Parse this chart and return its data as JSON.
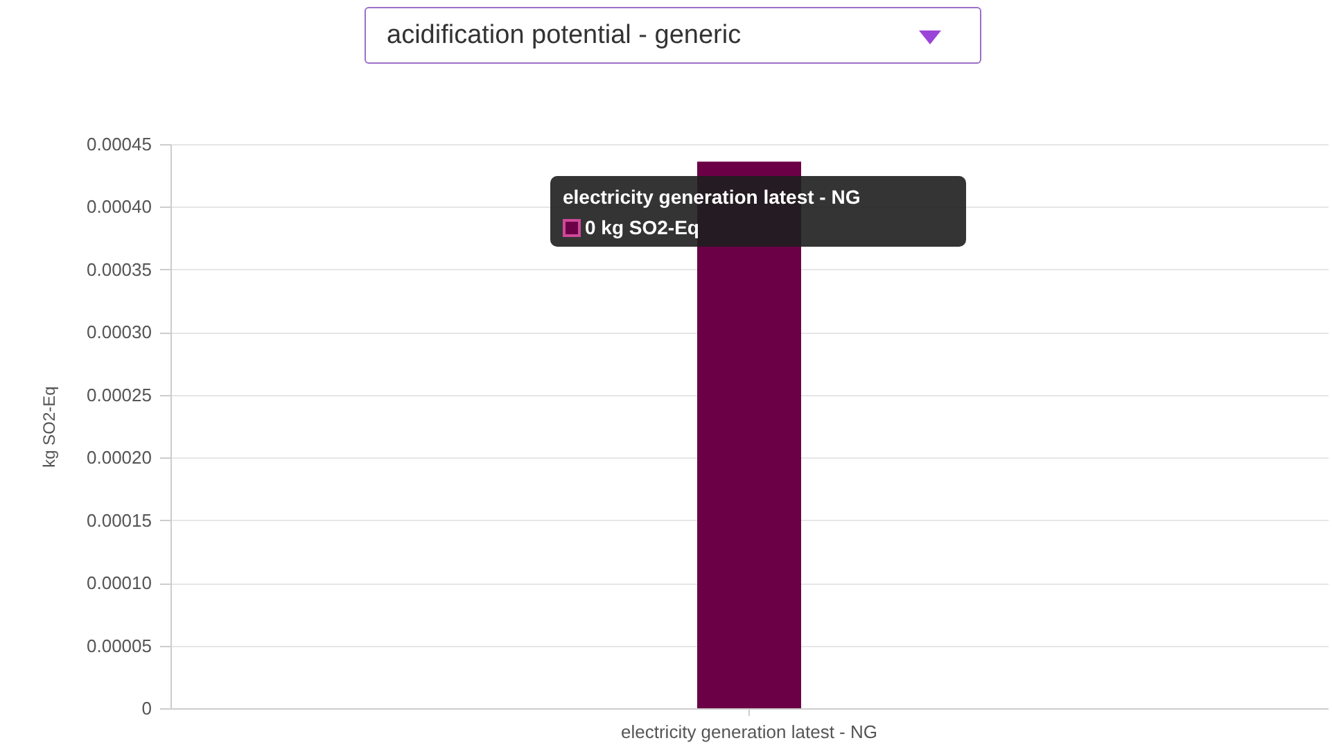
{
  "chart_data": {
    "type": "bar",
    "title": "acidification potential - generic",
    "ylabel": "kg SO2-Eq",
    "categories": [
      "electricity generation latest - NG"
    ],
    "values": [
      0.000436
    ],
    "color": "#6b0046",
    "ylim": [
      0,
      0.00045
    ],
    "yticks": [
      0,
      {
        "value": 5e-05,
        "label": "0.00005"
      },
      {
        "value": 0.0001,
        "label": "0.00010"
      },
      {
        "value": 0.00015,
        "label": "0.00015"
      },
      {
        "value": 0.0002,
        "label": "0.00020"
      },
      {
        "value": 0.00025,
        "label": "0.00025"
      },
      {
        "value": 0.0003,
        "label": "0.00030"
      },
      {
        "value": 0.00035,
        "label": "0.00035"
      },
      {
        "value": 0.0004,
        "label": "0.00040"
      },
      {
        "value": 0.00045,
        "label": "0.00045"
      }
    ],
    "grid": "y",
    "annotations": [
      "electricity generation latest - NG",
      "0 kg SO2-Eq"
    ]
  }
}
